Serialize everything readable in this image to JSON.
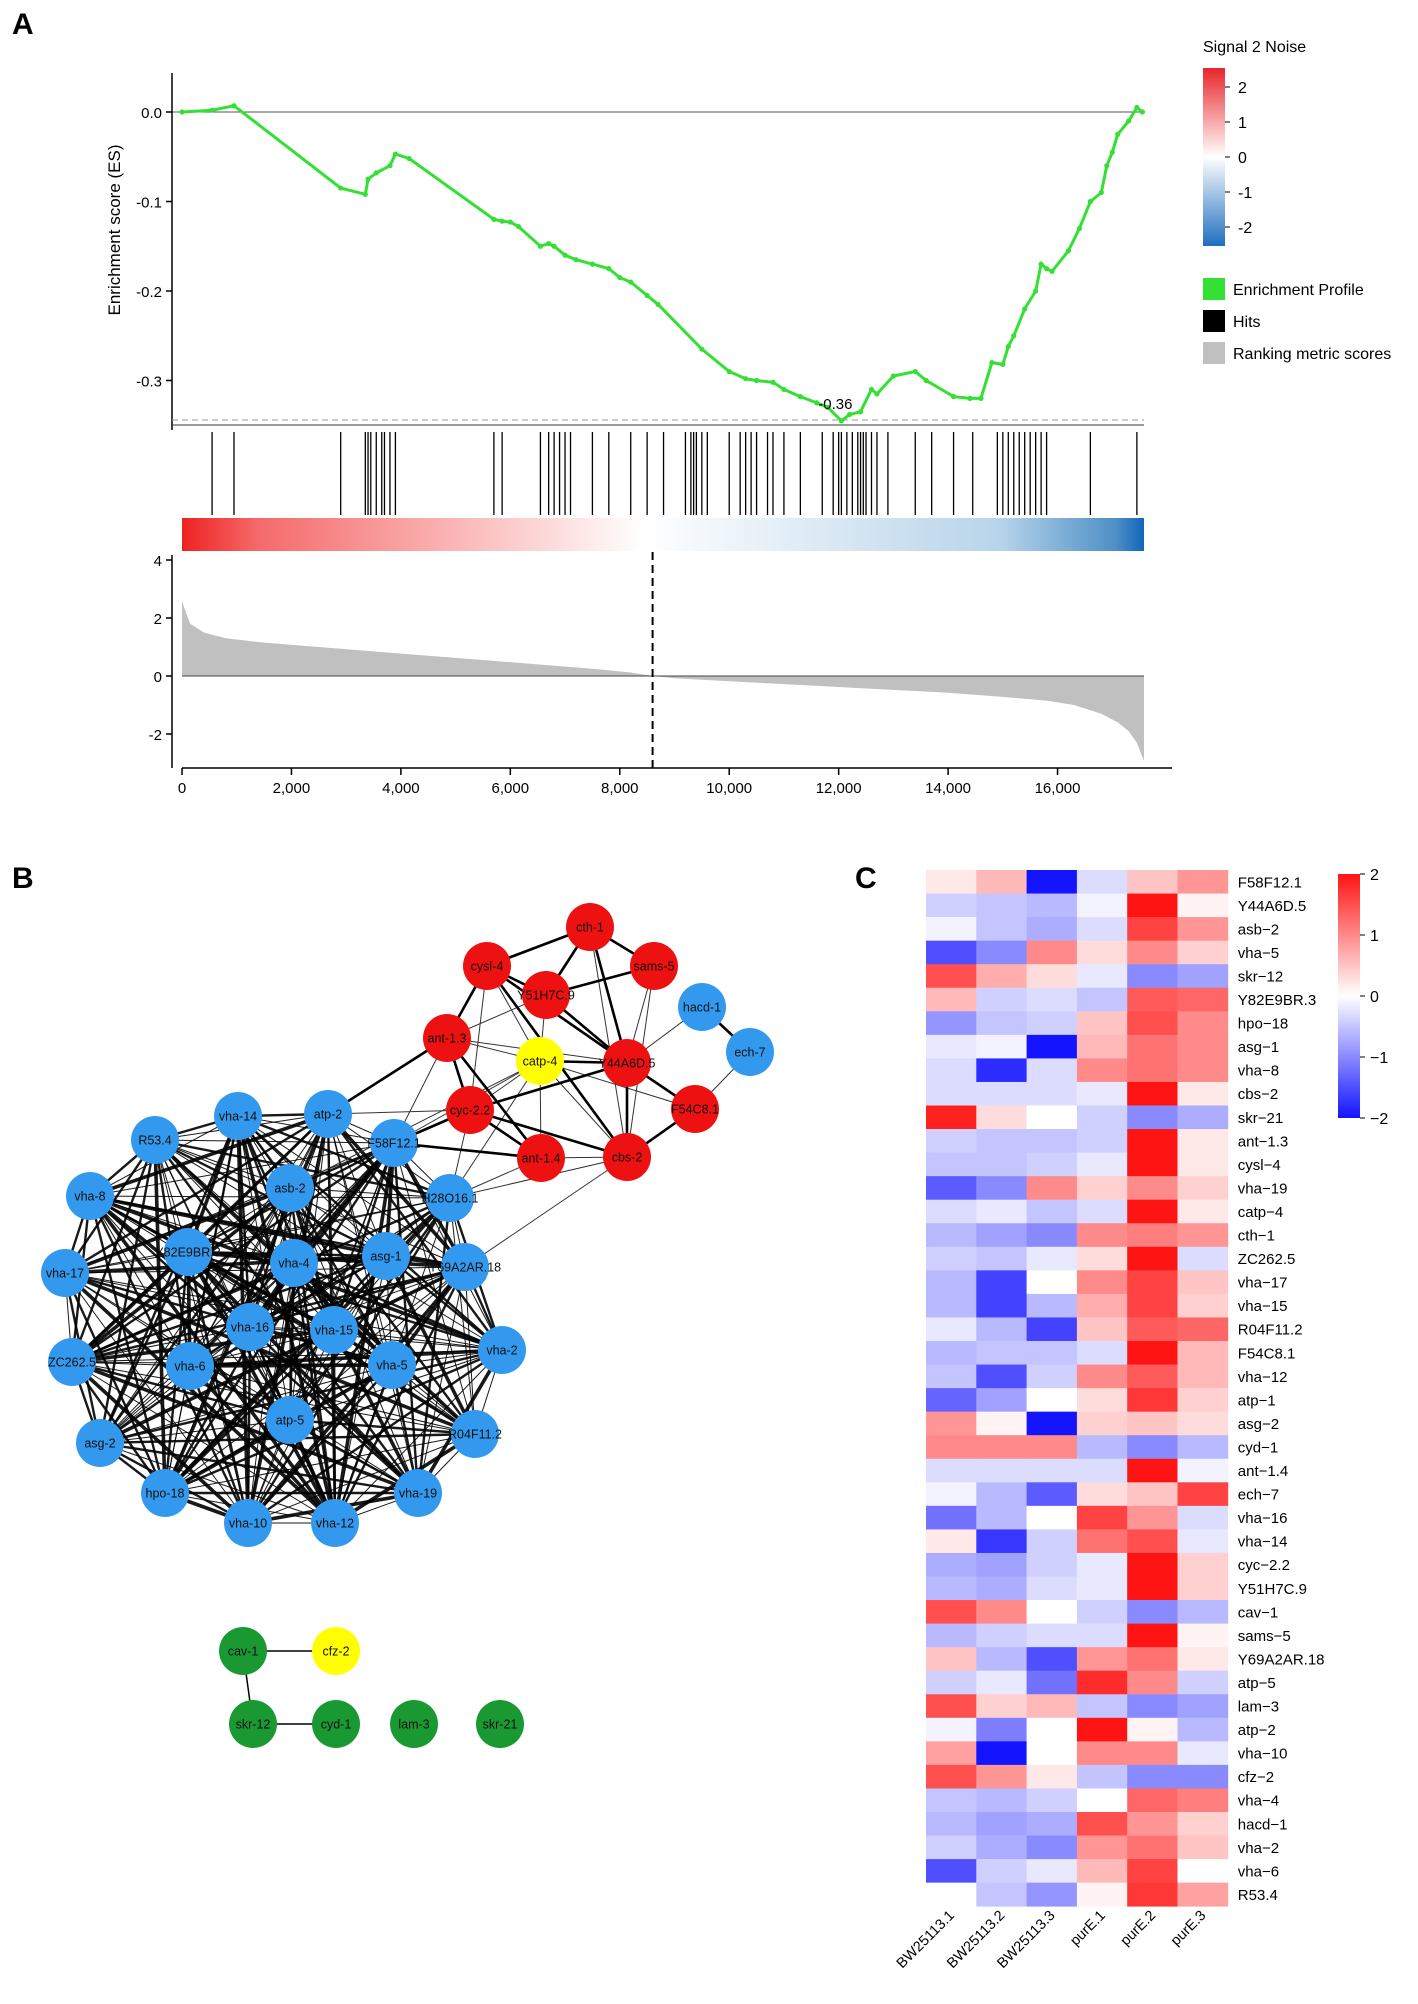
{
  "panels": {
    "a": "A",
    "b": "B",
    "c": "C"
  },
  "colors": {
    "es_line": "#33e033",
    "hits": "#000000",
    "ranking_fill": "#c0c0c0",
    "node_red": "#ee1111",
    "node_blue": "#3399ee",
    "node_yellow": "#ffff00",
    "node_green": "#1a9933",
    "heat_low": "#1414ff",
    "heat_mid": "#ffffff",
    "heat_high": "#ff1414",
    "grad_red": "#ee2222",
    "grad_blue": "#1166bb"
  },
  "chart_data": [
    {
      "id": "gsea",
      "type": "line",
      "title": "",
      "ylabel": "Enrichment score (ES)",
      "xlim": [
        0,
        18000
      ],
      "ylim": [
        -0.35,
        0.05
      ],
      "yticks": [
        0.0,
        -0.1,
        -0.2,
        -0.3
      ],
      "ytick_labels": [
        "0.0",
        "-0.1",
        "-0.2",
        "-0.3"
      ],
      "xticks": [
        0,
        2000,
        4000,
        6000,
        8000,
        10000,
        12000,
        14000,
        16000
      ],
      "xtick_labels": [
        "0",
        "2,000",
        "4,000",
        "6,000",
        "8,000",
        "10,000",
        "12,000",
        "14,000",
        "16,000"
      ],
      "min_label": "-0.36",
      "es_curve": {
        "x": [
          0,
          550,
          950,
          2900,
          3350,
          3400,
          3550,
          3800,
          3900,
          4150,
          5700,
          5850,
          6000,
          6150,
          6550,
          6700,
          6800,
          7000,
          7200,
          7500,
          7800,
          8000,
          8200,
          8500,
          8700,
          9500,
          10000,
          10300,
          10500,
          10800,
          11000,
          11300,
          11600,
          11800,
          12050,
          12200,
          12400,
          12600,
          12700,
          13000,
          13400,
          13600,
          14100,
          14400,
          14600,
          14800,
          15000,
          15100,
          15200,
          15400,
          15600,
          15700,
          15800,
          15900,
          16200,
          16400,
          16600,
          16800,
          16900,
          17000,
          17100,
          17300,
          17450,
          17550
        ],
        "y": [
          0.0,
          0.002,
          0.007,
          -0.085,
          -0.092,
          -0.075,
          -0.068,
          -0.06,
          -0.047,
          -0.052,
          -0.12,
          -0.122,
          -0.123,
          -0.128,
          -0.15,
          -0.147,
          -0.15,
          -0.16,
          -0.165,
          -0.17,
          -0.175,
          -0.185,
          -0.19,
          -0.205,
          -0.215,
          -0.265,
          -0.29,
          -0.298,
          -0.3,
          -0.302,
          -0.31,
          -0.318,
          -0.325,
          -0.33,
          -0.345,
          -0.338,
          -0.335,
          -0.31,
          -0.315,
          -0.295,
          -0.29,
          -0.3,
          -0.318,
          -0.32,
          -0.32,
          -0.28,
          -0.282,
          -0.262,
          -0.25,
          -0.22,
          -0.2,
          -0.17,
          -0.175,
          -0.178,
          -0.155,
          -0.13,
          -0.1,
          -0.09,
          -0.06,
          -0.045,
          -0.025,
          -0.01,
          0.005,
          0.0
        ]
      },
      "hits": [
        550,
        950,
        2900,
        3350,
        3400,
        3450,
        3550,
        3650,
        3700,
        3800,
        3900,
        5700,
        5850,
        6550,
        6700,
        6800,
        6900,
        7000,
        7100,
        7500,
        7800,
        8200,
        8500,
        8800,
        9200,
        9300,
        9350,
        9400,
        9500,
        9600,
        10000,
        10200,
        10300,
        10400,
        10500,
        10700,
        10800,
        11000,
        11300,
        11700,
        11900,
        12000,
        12050,
        12150,
        12250,
        12350,
        12400,
        12450,
        12500,
        12600,
        12700,
        12900,
        13400,
        13700,
        14100,
        14450,
        14900,
        15000,
        15100,
        15200,
        15300,
        15400,
        15500,
        15600,
        15700,
        15800,
        16600,
        17450
      ]
    },
    {
      "id": "ranking",
      "type": "area",
      "ylim": [
        -3.5,
        4
      ],
      "yticks": [
        4,
        2,
        0,
        -2
      ],
      "ytick_labels": [
        "4",
        "2",
        "0",
        "-2"
      ],
      "zero_cross": 8600,
      "x": [
        0,
        50,
        150,
        400,
        800,
        1500,
        2500,
        3500,
        4500,
        5500,
        6500,
        7500,
        8200,
        8600,
        9000,
        10000,
        11000,
        12000,
        13000,
        14000,
        15000,
        15800,
        16300,
        16800,
        17100,
        17300,
        17450,
        17550,
        17580
      ],
      "values": [
        2.6,
        2.3,
        1.8,
        1.5,
        1.3,
        1.15,
        1.0,
        0.85,
        0.7,
        0.55,
        0.4,
        0.25,
        0.12,
        0.0,
        -0.08,
        -0.18,
        -0.28,
        -0.38,
        -0.48,
        -0.58,
        -0.72,
        -0.85,
        -1.0,
        -1.3,
        -1.6,
        -1.9,
        -2.3,
        -2.8,
        -2.9
      ]
    },
    {
      "id": "heatmap",
      "type": "heatmap",
      "colorbar_ticks": [
        2,
        1,
        0,
        -1,
        -2
      ],
      "colorbar_labels": [
        "2",
        "1",
        "0",
        "−1",
        "−2"
      ],
      "columns": [
        "BW25113.1",
        "BW25113.2",
        "BW25113.3",
        "purE.1",
        "purE.2",
        "purE.3"
      ],
      "rows": [
        "F58F12.1",
        "Y44A6D.5",
        "asb−2",
        "vha−5",
        "skr−12",
        "Y82E9BR.3",
        "hpo−18",
        "asg−1",
        "vha−8",
        "cbs−2",
        "skr−21",
        "ant−1.3",
        "cysl−4",
        "vha−19",
        "catp−4",
        "cth−1",
        "ZC262.5",
        "vha−17",
        "vha−15",
        "R04F11.2",
        "F54C8.1",
        "vha−12",
        "atp−1",
        "asg−2",
        "cyd−1",
        "ant−1.4",
        "ech−7",
        "vha−16",
        "vha−14",
        "cyc−2.2",
        "Y51H7C.9",
        "cav−1",
        "sams−5",
        "Y69A2AR.18",
        "atp−5",
        "lam−3",
        "atp−2",
        "vha−10",
        "cfz−2",
        "vha−4",
        "hacd−1",
        "vha−2",
        "vha−6",
        "R53.4"
      ],
      "values": [
        [
          0.2,
          0.6,
          -2.0,
          -0.3,
          0.5,
          0.9
        ],
        [
          -0.4,
          -0.5,
          -0.6,
          -0.1,
          2.0,
          0.1
        ],
        [
          -0.1,
          -0.5,
          -0.7,
          -0.3,
          1.6,
          0.9
        ],
        [
          -1.5,
          -1.0,
          1.0,
          0.3,
          1.0,
          0.4
        ],
        [
          1.5,
          0.7,
          0.3,
          -0.2,
          -1.0,
          -0.8
        ],
        [
          0.6,
          -0.4,
          -0.3,
          -0.5,
          1.4,
          1.3
        ],
        [
          -0.9,
          -0.5,
          -0.4,
          0.5,
          1.5,
          1.0
        ],
        [
          -0.2,
          -0.1,
          -2.0,
          0.6,
          1.2,
          1.0
        ],
        [
          -0.3,
          -1.8,
          -0.3,
          1.0,
          1.2,
          1.0
        ],
        [
          -0.3,
          -0.3,
          -0.3,
          -0.2,
          2.0,
          0.2
        ],
        [
          1.9,
          0.3,
          0.0,
          -0.4,
          -1.0,
          -0.7
        ],
        [
          -0.4,
          -0.5,
          -0.5,
          -0.4,
          2.0,
          0.2
        ],
        [
          -0.5,
          -0.5,
          -0.4,
          -0.2,
          2.0,
          0.2
        ],
        [
          -1.4,
          -1.0,
          1.0,
          0.4,
          1.0,
          0.4
        ],
        [
          -0.3,
          -0.2,
          -0.5,
          -0.3,
          2.0,
          0.2
        ],
        [
          -0.6,
          -0.8,
          -1.0,
          1.0,
          1.1,
          0.9
        ],
        [
          -0.4,
          -0.5,
          -0.2,
          0.3,
          2.0,
          -0.3
        ],
        [
          -0.6,
          -1.6,
          0.0,
          1.0,
          1.6,
          0.5
        ],
        [
          -0.6,
          -1.6,
          -0.6,
          0.7,
          1.6,
          0.4
        ],
        [
          -0.2,
          -0.6,
          -1.6,
          0.5,
          1.4,
          1.3
        ],
        [
          -0.6,
          -0.5,
          -0.5,
          -0.3,
          2.0,
          0.6
        ],
        [
          -0.5,
          -1.5,
          -0.4,
          1.0,
          1.4,
          0.6
        ],
        [
          -1.3,
          -0.8,
          0.0,
          0.3,
          1.7,
          0.4
        ],
        [
          0.9,
          0.1,
          -2.0,
          0.4,
          0.5,
          0.3
        ],
        [
          1.0,
          1.0,
          1.0,
          -0.6,
          -1.0,
          -0.6
        ],
        [
          -0.3,
          -0.3,
          -0.3,
          -0.3,
          2.0,
          -0.1
        ],
        [
          -0.1,
          -0.6,
          -1.4,
          0.3,
          0.5,
          1.6
        ],
        [
          -1.2,
          -0.6,
          0.0,
          1.6,
          0.9,
          -0.3
        ],
        [
          0.2,
          -1.7,
          -0.4,
          1.2,
          1.5,
          -0.2
        ],
        [
          -0.7,
          -0.8,
          -0.4,
          -0.2,
          2.0,
          0.4
        ],
        [
          -0.6,
          -0.7,
          -0.3,
          -0.2,
          2.0,
          0.4
        ],
        [
          1.5,
          1.0,
          0.0,
          -0.4,
          -1.0,
          -0.6
        ],
        [
          -0.6,
          -0.4,
          -0.3,
          -0.3,
          2.0,
          0.1
        ],
        [
          0.5,
          -0.6,
          -1.5,
          0.9,
          1.2,
          0.2
        ],
        [
          -0.4,
          -0.2,
          -1.2,
          1.8,
          1.0,
          -0.4
        ],
        [
          1.5,
          0.4,
          0.6,
          -0.5,
          -1.0,
          -0.8
        ],
        [
          -0.1,
          -1.1,
          0.0,
          2.0,
          0.1,
          -0.6
        ],
        [
          0.8,
          -2.0,
          0.0,
          1.0,
          1.0,
          -0.2
        ],
        [
          1.5,
          0.9,
          0.2,
          -0.5,
          -1.0,
          -1.0
        ],
        [
          -0.5,
          -0.6,
          -0.4,
          0.0,
          1.3,
          1.1
        ],
        [
          -0.6,
          -0.8,
          -0.7,
          1.5,
          0.9,
          0.4
        ],
        [
          -0.4,
          -0.7,
          -1.0,
          0.9,
          1.2,
          0.5
        ],
        [
          -1.5,
          -0.4,
          -0.2,
          0.6,
          1.6,
          0.0
        ],
        [
          0.0,
          -0.5,
          -0.9,
          0.1,
          1.7,
          0.8
        ]
      ]
    }
  ],
  "legend": {
    "title": "Signal 2 Noise",
    "ticks": [
      "2",
      "1",
      "0",
      "-1",
      "-2"
    ],
    "items": [
      "Enrichment Profile",
      "Hits",
      "Ranking metric scores"
    ]
  },
  "network": {
    "nodes": [
      {
        "id": "cth-1",
        "color": "red"
      },
      {
        "id": "cysl-4",
        "color": "red"
      },
      {
        "id": "sams-5",
        "color": "red"
      },
      {
        "id": "Y51H7C.9",
        "color": "red"
      },
      {
        "id": "ant-1.3",
        "color": "red"
      },
      {
        "id": "Y44A6D.5",
        "color": "red"
      },
      {
        "id": "cyc-2.2",
        "color": "red"
      },
      {
        "id": "F54C8.1",
        "color": "red"
      },
      {
        "id": "ant-1.4",
        "color": "red"
      },
      {
        "id": "cbs-2",
        "color": "red"
      },
      {
        "id": "catp-4",
        "color": "yellow"
      },
      {
        "id": "hacd-1",
        "color": "blue"
      },
      {
        "id": "ech-7",
        "color": "blue"
      },
      {
        "id": "vha-14",
        "color": "blue"
      },
      {
        "id": "atp-2",
        "color": "blue"
      },
      {
        "id": "R53.4",
        "color": "blue"
      },
      {
        "id": "F58F12.1",
        "color": "blue"
      },
      {
        "id": "vha-8",
        "color": "blue"
      },
      {
        "id": "asb-2",
        "color": "blue"
      },
      {
        "id": "H28O16.1",
        "color": "blue"
      },
      {
        "id": "vha-17",
        "color": "blue"
      },
      {
        "id": "Y82E9BR.3",
        "color": "blue"
      },
      {
        "id": "vha-4",
        "color": "blue"
      },
      {
        "id": "asg-1",
        "color": "blue"
      },
      {
        "id": "Y69A2AR.18",
        "color": "blue"
      },
      {
        "id": "vha-16",
        "color": "blue"
      },
      {
        "id": "vha-15",
        "color": "blue"
      },
      {
        "id": "ZC262.5",
        "color": "blue"
      },
      {
        "id": "vha-6",
        "color": "blue"
      },
      {
        "id": "vha-5",
        "color": "blue"
      },
      {
        "id": "vha-2",
        "color": "blue"
      },
      {
        "id": "atp-5",
        "color": "blue"
      },
      {
        "id": "asg-2",
        "color": "blue"
      },
      {
        "id": "R04F11.2",
        "color": "blue"
      },
      {
        "id": "hpo-18",
        "color": "blue"
      },
      {
        "id": "vha-19",
        "color": "blue"
      },
      {
        "id": "vha-10",
        "color": "blue"
      },
      {
        "id": "vha-12",
        "color": "blue"
      },
      {
        "id": "cav-1",
        "color": "green"
      },
      {
        "id": "cfz-2",
        "color": "yellow"
      },
      {
        "id": "skr-12",
        "color": "green"
      },
      {
        "id": "cyd-1",
        "color": "green"
      },
      {
        "id": "lam-3",
        "color": "green"
      },
      {
        "id": "skr-21",
        "color": "green"
      }
    ],
    "thick_edges": [
      [
        "cysl-4",
        "cth-1"
      ],
      [
        "cysl-4",
        "Y51H7C.9"
      ],
      [
        "cth-1",
        "Y51H7C.9"
      ],
      [
        "Y51H7C.9",
        "sams-5"
      ],
      [
        "cth-1",
        "sams-5"
      ],
      [
        "cysl-4",
        "Y44A6D.5"
      ],
      [
        "Y51H7C.9",
        "Y44A6D.5"
      ],
      [
        "cth-1",
        "Y44A6D.5"
      ],
      [
        "Y44A6D.5",
        "F54C8.1"
      ],
      [
        "Y44A6D.5",
        "cbs-2"
      ],
      [
        "F54C8.1",
        "cbs-2"
      ],
      [
        "ant-1.3",
        "cyc-2.2"
      ],
      [
        "ant-1.3",
        "ant-1.4"
      ],
      [
        "cyc-2.2",
        "ant-1.4"
      ],
      [
        "cyc-2.2",
        "Y44A6D.5"
      ],
      [
        "cyc-2.2",
        "cbs-2"
      ],
      [
        "ant-1.3",
        "cysl-4"
      ],
      [
        "hacd-1",
        "ech-7"
      ],
      [
        "ant-1.3",
        "atp-2"
      ],
      [
        "cyc-2.2",
        "F58F12.1"
      ],
      [
        "ant-1.4",
        "F58F12.1"
      ],
      [
        "cysl-4",
        "cbs-2"
      ],
      [
        "catp-4",
        "Y44A6D.5"
      ]
    ],
    "thin_edges": [
      [
        "catp-4",
        "ant-1.3"
      ],
      [
        "catp-4",
        "cyc-2.2"
      ],
      [
        "catp-4",
        "cysl-4"
      ],
      [
        "catp-4",
        "Y51H7C.9"
      ],
      [
        "catp-4",
        "cbs-2"
      ],
      [
        "catp-4",
        "F54C8.1"
      ],
      [
        "catp-4",
        "ant-1.4"
      ],
      [
        "sams-5",
        "Y44A6D.5"
      ],
      [
        "sams-5",
        "cbs-2"
      ],
      [
        "hacd-1",
        "Y44A6D.5"
      ],
      [
        "ant-1.3",
        "Y51H7C.9"
      ],
      [
        "ant-1.3",
        "Y44A6D.5"
      ],
      [
        "cbs-2",
        "ant-1.4"
      ],
      [
        "ant-1.4",
        "H28O16.1"
      ],
      [
        "cyc-2.2",
        "H28O16.1"
      ],
      [
        "cyc-2.2",
        "atp-2"
      ],
      [
        "ant-1.3",
        "F58F12.1"
      ],
      [
        "catp-4",
        "F58F12.1"
      ],
      [
        "cbs-2",
        "Y69A2AR.18"
      ],
      [
        "cbs-2",
        "H28O16.1"
      ],
      [
        "catp-4",
        "asb-2"
      ],
      [
        "catp-4",
        "H28O16.1"
      ],
      [
        "cysl-4",
        "cyc-2.2"
      ],
      [
        "ech-7",
        "F54C8.1"
      ],
      [
        "cbs-2",
        "cth-1"
      ]
    ],
    "cluster_dense": [
      "vha-14",
      "atp-2",
      "R53.4",
      "F58F12.1",
      "vha-8",
      "asb-2",
      "H28O16.1",
      "vha-17",
      "Y82E9BR.3",
      "vha-4",
      "asg-1",
      "Y69A2AR.18",
      "vha-16",
      "vha-15",
      "ZC262.5",
      "vha-6",
      "vha-5",
      "vha-2",
      "atp-5",
      "asg-2",
      "R04F11.2",
      "hpo-18",
      "vha-19",
      "vha-10",
      "vha-12"
    ],
    "bottom_edges": [
      [
        "cav-1",
        "cfz-2"
      ],
      [
        "cav-1",
        "skr-12"
      ],
      [
        "skr-12",
        "cyd-1"
      ]
    ]
  }
}
